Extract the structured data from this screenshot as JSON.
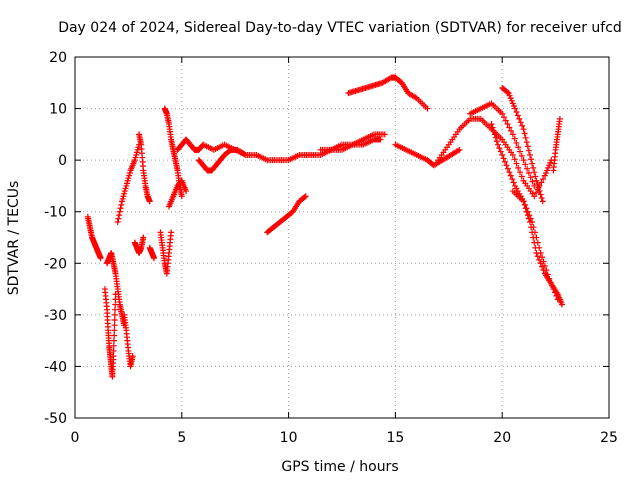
{
  "chart_data": {
    "type": "scatter",
    "title": "Day 024 of 2024, Sidereal Day-to-day VTEC variation (SDTVAR) for receiver ufcd",
    "xlabel": "GPS time / hours",
    "ylabel": "SDTVAR / TECUs",
    "xlim": [
      0,
      25
    ],
    "ylim": [
      -50,
      20
    ],
    "xticks": [
      0,
      5,
      10,
      15,
      20,
      25
    ],
    "yticks": [
      -50,
      -40,
      -30,
      -20,
      -10,
      0,
      10,
      20
    ],
    "xtick_labels": [
      "0",
      "5",
      "10",
      "15",
      "20",
      "25"
    ],
    "ytick_labels": [
      "-50",
      "-40",
      "-30",
      "-20",
      "-10",
      "0",
      "10",
      "20"
    ],
    "grid": true,
    "marker": "+",
    "color": "#ff0000",
    "series": [
      {
        "name": "s1",
        "x": [
          0.6,
          0.7,
          0.8,
          0.9,
          1.0,
          1.1,
          1.2
        ],
        "y": [
          -11,
          -13,
          -15,
          -16,
          -17,
          -18,
          -19
        ]
      },
      {
        "name": "s2",
        "x": [
          1.4,
          1.5,
          1.55,
          1.6,
          1.65,
          1.7,
          1.75,
          1.8,
          1.85,
          1.9
        ],
        "y": [
          -25,
          -29,
          -33,
          -36,
          -38,
          -40,
          -42,
          -38,
          -32,
          -26
        ]
      },
      {
        "name": "s3",
        "x": [
          1.5,
          1.6,
          1.7,
          1.8,
          1.9,
          2.0,
          2.1,
          2.2,
          2.3
        ],
        "y": [
          -20,
          -19,
          -18,
          -20,
          -22,
          -25,
          -28,
          -30,
          -32
        ]
      },
      {
        "name": "s4",
        "x": [
          2.0,
          2.2,
          2.4,
          2.6,
          2.8,
          3.0
        ],
        "y": [
          -12,
          -8,
          -5,
          -2,
          0,
          3
        ]
      },
      {
        "name": "s5",
        "x": [
          2.3,
          2.4,
          2.5,
          2.6,
          2.7
        ],
        "y": [
          -30,
          -33,
          -37,
          -40,
          -38
        ]
      },
      {
        "name": "s6",
        "x": [
          2.8,
          2.9,
          3.0,
          3.1,
          3.2
        ],
        "y": [
          -16,
          -17,
          -18,
          -17,
          -15
        ]
      },
      {
        "name": "s7",
        "x": [
          3.0,
          3.1,
          3.2,
          3.3,
          3.4,
          3.5
        ],
        "y": [
          5,
          3,
          -2,
          -5,
          -7,
          -8
        ]
      },
      {
        "name": "s8",
        "x": [
          3.5,
          3.6,
          3.7
        ],
        "y": [
          -17,
          -18,
          -19
        ]
      },
      {
        "name": "s9",
        "x": [
          4.0,
          4.1,
          4.2,
          4.3,
          4.4,
          4.5
        ],
        "y": [
          -14,
          -17,
          -20,
          -22,
          -18,
          -14
        ]
      },
      {
        "name": "s10",
        "x": [
          4.2,
          4.3,
          4.4,
          4.5,
          4.6,
          4.7,
          4.8,
          4.9,
          5.0
        ],
        "y": [
          10,
          9,
          7,
          4,
          2,
          0,
          -2,
          -5,
          -7
        ]
      },
      {
        "name": "s11",
        "x": [
          4.4,
          4.6,
          4.8,
          5.0,
          5.2
        ],
        "y": [
          -9,
          -7,
          -5,
          -4,
          -6
        ]
      },
      {
        "name": "s12",
        "x": [
          4.8,
          5.0,
          5.2,
          5.4,
          5.6,
          5.8,
          6.0,
          6.5,
          7.0,
          7.5,
          8.0,
          8.5,
          9.0,
          9.5,
          10.0,
          10.5,
          11.0
        ],
        "y": [
          2,
          3,
          4,
          3,
          2,
          2,
          3,
          2,
          3,
          2,
          1,
          1,
          0,
          0,
          0,
          1,
          1
        ]
      },
      {
        "name": "s13",
        "x": [
          5.8,
          6.0,
          6.2,
          6.4,
          6.6,
          6.8,
          7.0,
          7.3,
          7.6,
          8.0
        ],
        "y": [
          0,
          -1,
          -2,
          -2,
          -1,
          0,
          1,
          2,
          2,
          1
        ]
      },
      {
        "name": "s14",
        "x": [
          9.0,
          9.3,
          9.6,
          9.9,
          10.2,
          10.5,
          10.8
        ],
        "y": [
          -14,
          -13,
          -12,
          -11,
          -10,
          -8,
          -7
        ]
      },
      {
        "name": "s15",
        "x": [
          11.0,
          11.5,
          12.0,
          12.5,
          13.0,
          13.5,
          14.0,
          14.3
        ],
        "y": [
          1,
          1,
          2,
          2,
          3,
          3,
          4,
          4
        ]
      },
      {
        "name": "s16",
        "x": [
          11.5,
          12.0,
          12.5,
          13.0,
          13.5,
          14.0,
          14.5
        ],
        "y": [
          2,
          2,
          3,
          3,
          4,
          5,
          5
        ]
      },
      {
        "name": "s17",
        "x": [
          12.8,
          13.2,
          13.6,
          14.0,
          14.4,
          14.8,
          15.0,
          15.3,
          15.6,
          16.0,
          16.5
        ],
        "y": [
          13,
          13.5,
          14,
          14.5,
          15,
          16,
          16,
          15,
          13,
          12,
          10
        ]
      },
      {
        "name": "s18",
        "x": [
          15.0,
          15.5,
          16.0,
          16.5,
          16.8,
          17.2,
          17.6,
          18.0
        ],
        "y": [
          3,
          2,
          1,
          0,
          -1,
          0,
          1,
          2
        ]
      },
      {
        "name": "s19",
        "x": [
          17.0,
          17.5,
          18.0,
          18.5,
          19.0,
          19.5,
          20.0,
          20.5,
          21.0,
          21.5,
          22.0,
          22.3
        ],
        "y": [
          0,
          3,
          6,
          8,
          8,
          6,
          4,
          1,
          -4,
          -7,
          -3,
          0
        ]
      },
      {
        "name": "s20",
        "x": [
          18.5,
          19.0,
          19.5,
          20.0,
          20.5,
          21.0,
          21.5
        ],
        "y": [
          9,
          10,
          11,
          9,
          5,
          0,
          -5
        ]
      },
      {
        "name": "s21",
        "x": [
          19.5,
          19.8,
          20.2,
          20.6,
          21.0,
          21.4,
          21.8,
          22.2,
          22.6
        ],
        "y": [
          7,
          3,
          -1,
          -5,
          -8,
          -12,
          -18,
          -23,
          -27
        ]
      },
      {
        "name": "s22",
        "x": [
          20.0,
          20.3,
          20.6,
          21.0,
          21.3,
          21.6,
          21.9
        ],
        "y": [
          14,
          13,
          10,
          6,
          1,
          -4,
          -8
        ]
      },
      {
        "name": "s23",
        "x": [
          20.5,
          21.0,
          21.3,
          21.6,
          22.0,
          22.3,
          22.6,
          22.8
        ],
        "y": [
          -6,
          -8,
          -12,
          -18,
          -22,
          -24,
          -26,
          -28
        ]
      },
      {
        "name": "s24",
        "x": [
          22.4,
          22.5,
          22.6,
          22.7
        ],
        "y": [
          -2,
          2,
          5,
          8
        ]
      }
    ]
  }
}
